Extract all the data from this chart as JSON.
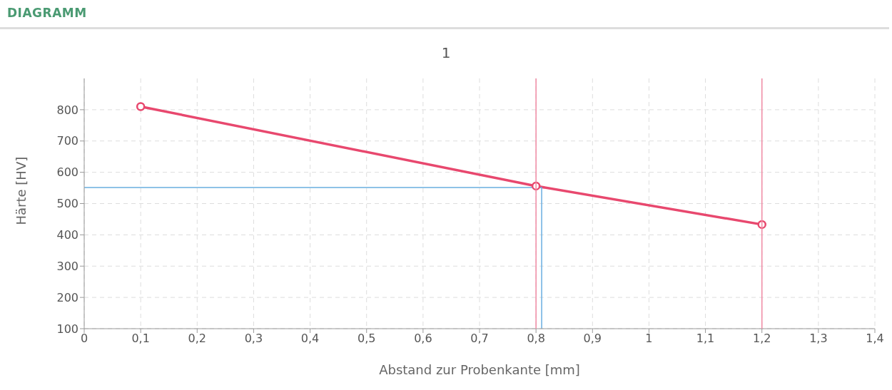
{
  "chart_data": {
    "type": "line",
    "title": "DIAGRAMM",
    "subtitle": "1",
    "xlabel": "Abstand zur Probenkante [mm]",
    "ylabel": "Härte [HV]",
    "series": [
      {
        "type": "line",
        "color": "#e8486e",
        "x": [
          0.1,
          0.8,
          1.2
        ],
        "values": [
          810,
          556,
          433
        ]
      },
      {
        "type": "line",
        "color": "#6aaee0",
        "x": [
          0,
          0.81,
          0.81
        ],
        "values": [
          551,
          551,
          100
        ],
        "marker": "none"
      }
    ],
    "xlim": [
      0,
      1.4
    ],
    "xticks": [
      0,
      {
        "value": 0.1,
        "label": "0,1"
      },
      {
        "value": 0.2,
        "label": "0,2"
      },
      {
        "value": 0.3,
        "label": "0,3"
      },
      {
        "value": 0.4,
        "label": "0,4"
      },
      {
        "value": 0.5,
        "label": "0,5"
      },
      {
        "value": 0.6,
        "label": "0,6"
      },
      {
        "value": 0.7,
        "label": "0,7"
      },
      {
        "value": 0.8,
        "label": "0,8"
      },
      {
        "value": 0.9,
        "label": "0,9"
      },
      1,
      {
        "value": 1.1,
        "label": "1,1"
      },
      {
        "value": 1.2,
        "label": "1,2"
      },
      {
        "value": 1.3,
        "label": "1,3"
      },
      {
        "value": 1.4,
        "label": "1,4"
      }
    ],
    "ylim": [
      100,
      900
    ],
    "yticks": [
      100,
      200,
      300,
      400,
      500,
      600,
      700,
      800
    ],
    "ref_lines": [
      {
        "axis": "x",
        "value": 0.8,
        "color": "#f08aa4"
      },
      {
        "axis": "x",
        "value": 1.2,
        "color": "#f08aa4"
      }
    ],
    "grid": true,
    "marker": "circle",
    "line_style": "solid"
  }
}
